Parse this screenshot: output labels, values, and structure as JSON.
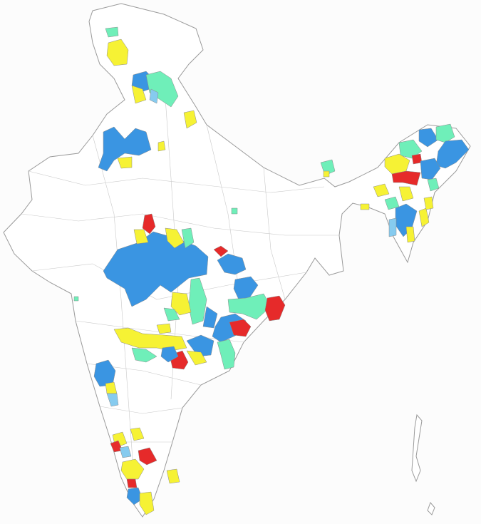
{
  "map": {
    "colors": [
      "#3a95e2",
      "#f6f234",
      "#e62a2a",
      "#6fefb9",
      "#86cbef"
    ]
  }
}
